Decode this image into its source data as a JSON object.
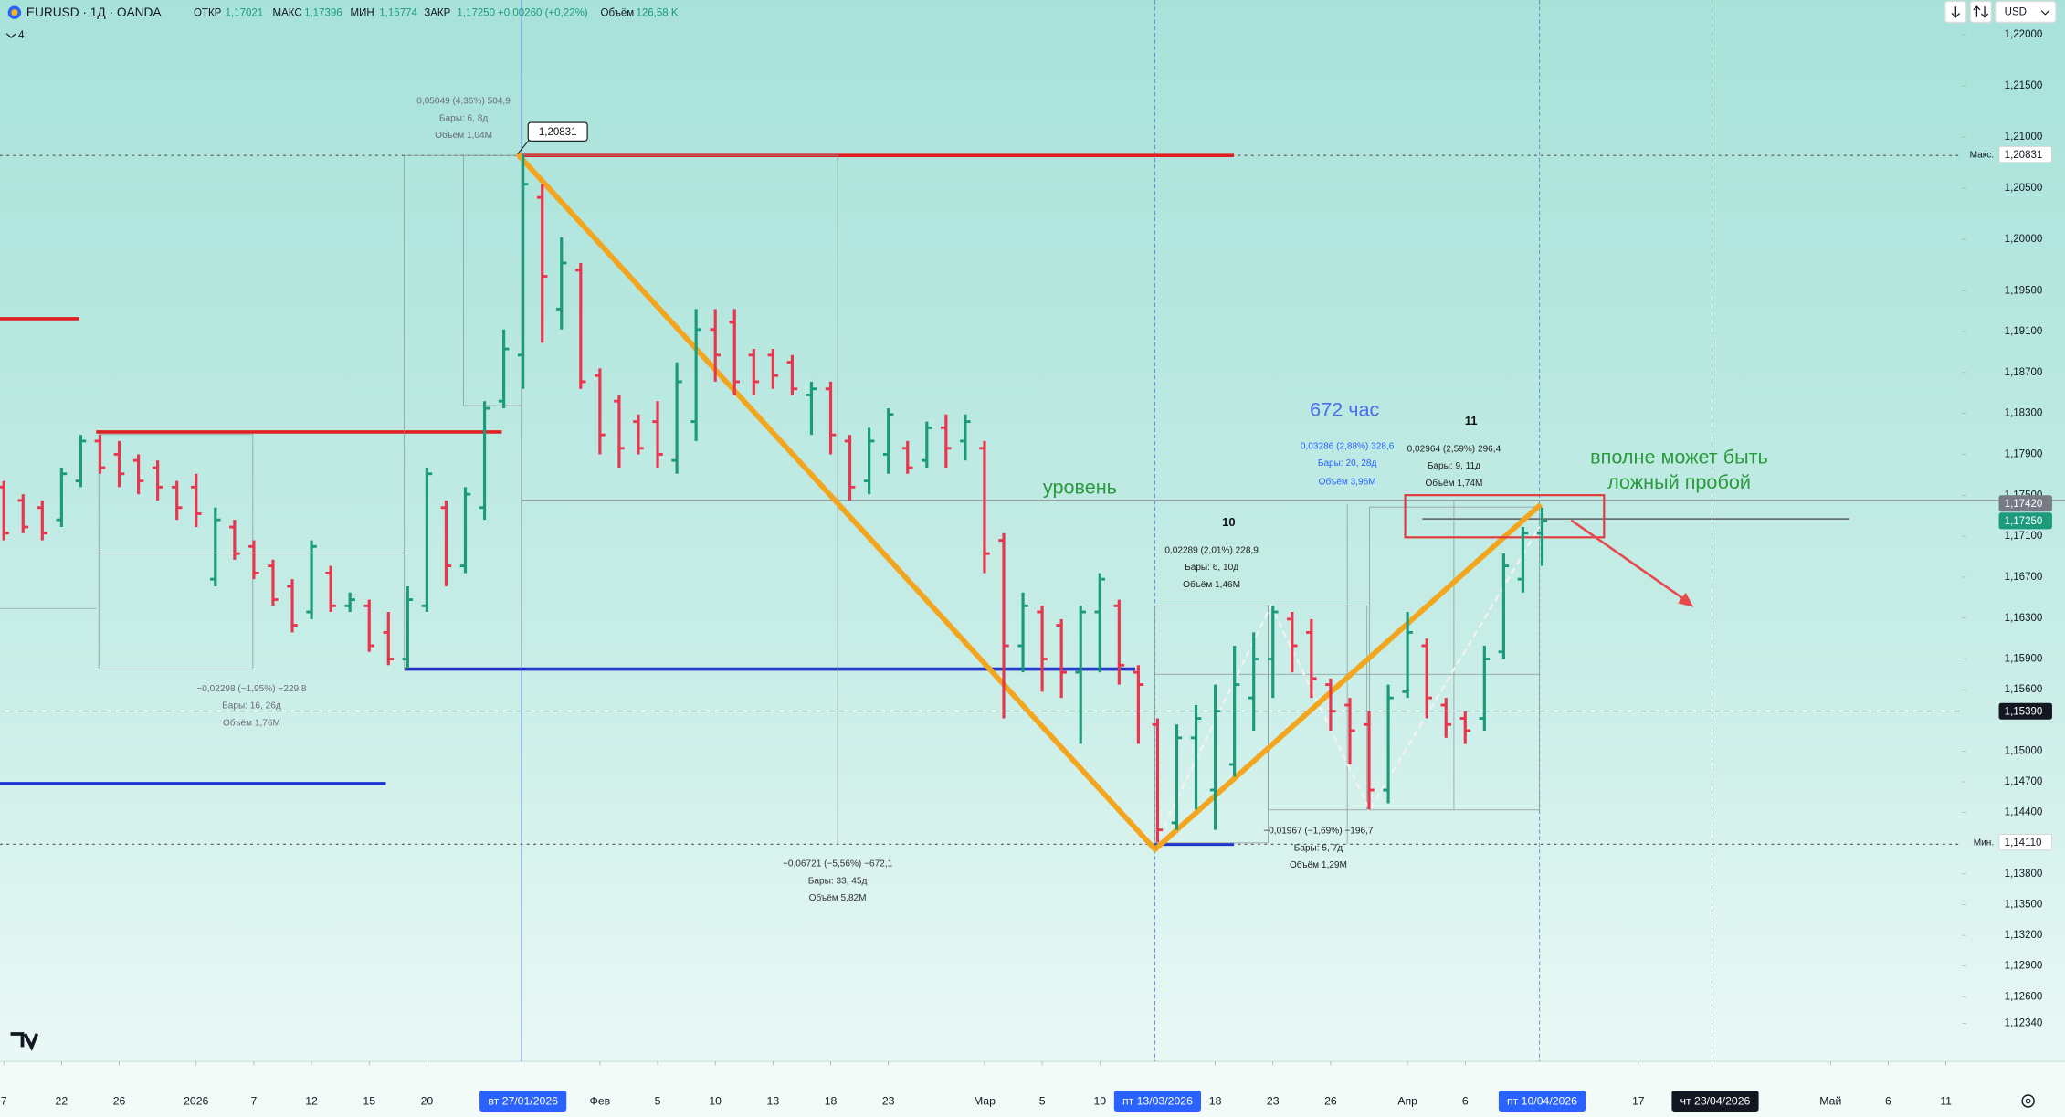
{
  "header": {
    "symbol": "EURUSD · 1Д · OANDA",
    "fields": [
      [
        "ОТКР",
        "1,17021"
      ],
      [
        "МАКС",
        "1,17396"
      ],
      [
        "МИН",
        "1,16774"
      ],
      [
        "ЗАКР",
        "1,17250"
      ]
    ],
    "change": "+0,00260 (+0,22%)",
    "volume_label": "Объём",
    "volume": "126,58 K",
    "indicators": "4",
    "currency": "USD"
  },
  "chart_data": {
    "type": "ohlc",
    "up_color": "#1b9b7c",
    "down_color": "#e8364f",
    "grid": false,
    "x": [
      0,
      1,
      2,
      3,
      4,
      5,
      6,
      7,
      8,
      9,
      10,
      11,
      12,
      13,
      14,
      15,
      16,
      17,
      18,
      19,
      20,
      21,
      22,
      23,
      24,
      25,
      26,
      27,
      28,
      29,
      30,
      31,
      32,
      33,
      34,
      35,
      36,
      37,
      38,
      39,
      40,
      41,
      42,
      43,
      44,
      45,
      46,
      47,
      48,
      49,
      50,
      51,
      52,
      53,
      54,
      55,
      56,
      57,
      58,
      59,
      60,
      61,
      62,
      63,
      64,
      65,
      66,
      67,
      68,
      69,
      70,
      71,
      72,
      73,
      74,
      75,
      76,
      77,
      78,
      79,
      80
    ],
    "ohlc": [
      [
        1.1758,
        1.1764,
        1.1706,
        1.1713
      ],
      [
        1.1745,
        1.1751,
        1.1713,
        1.1719
      ],
      [
        1.1738,
        1.1745,
        1.1706,
        1.1713
      ],
      [
        1.1726,
        1.1777,
        1.1719,
        1.1771
      ],
      [
        1.1764,
        1.1809,
        1.1758,
        1.1803
      ],
      [
        1.1803,
        1.1809,
        1.1771,
        1.1777
      ],
      [
        1.179,
        1.1803,
        1.1758,
        1.1771
      ],
      [
        1.1784,
        1.179,
        1.1751,
        1.1764
      ],
      [
        1.1777,
        1.1784,
        1.1745,
        1.1758
      ],
      [
        1.1758,
        1.1764,
        1.1726,
        1.1738
      ],
      [
        1.1758,
        1.1771,
        1.1719,
        1.1732
      ],
      [
        1.1668,
        1.1738,
        1.1661,
        1.1726
      ],
      [
        1.1719,
        1.1726,
        1.1687,
        1.1693
      ],
      [
        1.17,
        1.1706,
        1.1668,
        1.1674
      ],
      [
        1.1681,
        1.1687,
        1.1642,
        1.1648
      ],
      [
        1.1661,
        1.1668,
        1.1616,
        1.1623
      ],
      [
        1.1636,
        1.1706,
        1.1629,
        1.17
      ],
      [
        1.1674,
        1.1681,
        1.1636,
        1.1642
      ],
      [
        1.1642,
        1.1655,
        1.1636,
        1.1648
      ],
      [
        1.1642,
        1.1648,
        1.1597,
        1.1603
      ],
      [
        1.1616,
        1.1636,
        1.1584,
        1.159
      ],
      [
        1.159,
        1.1661,
        1.1581,
        1.1648
      ],
      [
        1.1642,
        1.1777,
        1.1636,
        1.1771
      ],
      [
        1.1738,
        1.1745,
        1.1661,
        1.1681
      ],
      [
        1.1681,
        1.1758,
        1.1674,
        1.1751
      ],
      [
        1.1738,
        1.1842,
        1.1726,
        1.1835
      ],
      [
        1.1842,
        1.1912,
        1.1835,
        1.1893
      ],
      [
        1.1887,
        1.20831,
        1.1854,
        1.2054
      ],
      [
        1.2041,
        1.2054,
        1.1899,
        1.1964
      ],
      [
        1.1932,
        1.2002,
        1.1912,
        1.1977
      ],
      [
        1.197,
        1.1977,
        1.1854,
        1.1861
      ],
      [
        1.1867,
        1.1874,
        1.179,
        1.1809
      ],
      [
        1.1842,
        1.1848,
        1.1777,
        1.1796
      ],
      [
        1.1822,
        1.1829,
        1.179,
        1.1796
      ],
      [
        1.1822,
        1.1842,
        1.1777,
        1.179
      ],
      [
        1.1784,
        1.188,
        1.1771,
        1.1861
      ],
      [
        1.1822,
        1.1932,
        1.1803,
        1.1912
      ],
      [
        1.1912,
        1.1932,
        1.1861,
        1.1887
      ],
      [
        1.1919,
        1.1932,
        1.1848,
        1.1861
      ],
      [
        1.1887,
        1.1893,
        1.1848,
        1.1861
      ],
      [
        1.1887,
        1.1893,
        1.1854,
        1.1867
      ],
      [
        1.188,
        1.1887,
        1.1848,
        1.1854
      ],
      [
        1.1848,
        1.1861,
        1.1809,
        1.1854
      ],
      [
        1.1854,
        1.1861,
        1.179,
        1.1809
      ],
      [
        1.1803,
        1.1809,
        1.1745,
        1.1758
      ],
      [
        1.1764,
        1.1816,
        1.1751,
        1.1803
      ],
      [
        1.179,
        1.1835,
        1.1771,
        1.1829
      ],
      [
        1.1796,
        1.1803,
        1.1771,
        1.1777
      ],
      [
        1.1784,
        1.1822,
        1.1777,
        1.1816
      ],
      [
        1.1816,
        1.1829,
        1.1777,
        1.1796
      ],
      [
        1.1803,
        1.1829,
        1.1784,
        1.1822
      ],
      [
        1.1796,
        1.1803,
        1.1674,
        1.1693
      ],
      [
        1.1706,
        1.1713,
        1.1532,
        1.1603
      ],
      [
        1.1603,
        1.1655,
        1.1577,
        1.1642
      ],
      [
        1.1636,
        1.1642,
        1.1558,
        1.159
      ],
      [
        1.1623,
        1.1629,
        1.1552,
        1.1577
      ],
      [
        1.1577,
        1.1642,
        1.1507,
        1.1636
      ],
      [
        1.1636,
        1.1674,
        1.1577,
        1.1668
      ],
      [
        1.1642,
        1.1648,
        1.1565,
        1.1584
      ],
      [
        1.1577,
        1.1584,
        1.1507,
        1.1565
      ],
      [
        1.1526,
        1.1532,
        1.1411,
        1.1423
      ],
      [
        1.143,
        1.1526,
        1.1423,
        1.1513
      ],
      [
        1.1513,
        1.1545,
        1.1443,
        1.1532
      ],
      [
        1.1462,
        1.1565,
        1.1423,
        1.1539
      ],
      [
        1.1487,
        1.1603,
        1.1475,
        1.1565
      ],
      [
        1.1552,
        1.1616,
        1.152,
        1.159
      ],
      [
        1.159,
        1.1642,
        1.1552,
        1.1636
      ],
      [
        1.1629,
        1.1636,
        1.1577,
        1.1603
      ],
      [
        1.1616,
        1.1629,
        1.1552,
        1.1571
      ],
      [
        1.1565,
        1.1571,
        1.152,
        1.1539
      ],
      [
        1.1545,
        1.1552,
        1.1487,
        1.152
      ],
      [
        1.1526,
        1.1539,
        1.1443,
        1.1462
      ],
      [
        1.1462,
        1.1565,
        1.1449,
        1.1552
      ],
      [
        1.1558,
        1.1636,
        1.1552,
        1.1616
      ],
      [
        1.1603,
        1.161,
        1.1532,
        1.1552
      ],
      [
        1.1545,
        1.1552,
        1.1513,
        1.1526
      ],
      [
        1.1532,
        1.1539,
        1.1507,
        1.152
      ],
      [
        1.1532,
        1.1603,
        1.152,
        1.159
      ],
      [
        1.1597,
        1.1693,
        1.159,
        1.1681
      ],
      [
        1.1668,
        1.1719,
        1.1655,
        1.1713
      ],
      [
        1.1713,
        1.1738,
        1.1681,
        1.1725
      ]
    ],
    "xlim": [
      -0.2,
      101.85
    ],
    "ylim": [
      1.1198,
      1.2234
    ],
    "xticks": [
      {
        "value": 0,
        "label": "7"
      },
      {
        "value": 3,
        "label": "22"
      },
      {
        "value": 6,
        "label": "26"
      },
      {
        "value": 10,
        "label": "2026"
      },
      {
        "value": 13,
        "label": "7"
      },
      {
        "value": 16,
        "label": "12"
      },
      {
        "value": 19,
        "label": "15"
      },
      {
        "value": 22,
        "label": "20"
      },
      {
        "value": 31,
        "label": "Фев"
      },
      {
        "value": 34,
        "label": "5"
      },
      {
        "value": 37,
        "label": "10"
      },
      {
        "value": 40,
        "label": "13"
      },
      {
        "value": 43,
        "label": "18"
      },
      {
        "value": 46,
        "label": "23"
      },
      {
        "value": 51,
        "label": "Мар"
      },
      {
        "value": 54,
        "label": "5"
      },
      {
        "value": 57,
        "label": "10"
      },
      {
        "value": 63,
        "label": "18"
      },
      {
        "value": 66,
        "label": "23"
      },
      {
        "value": 69,
        "label": "26"
      },
      {
        "value": 73,
        "label": "Апр"
      },
      {
        "value": 76,
        "label": "6"
      },
      {
        "value": 85,
        "label": "17"
      },
      {
        "value": 95,
        "label": "Май"
      },
      {
        "value": 98,
        "label": "6"
      },
      {
        "value": 101,
        "label": "11"
      }
    ],
    "x_markers": [
      {
        "value": 27,
        "label": "вт 27/01/2026",
        "color": "#2962ff"
      },
      {
        "value": 60,
        "label": "пт 13/03/2026",
        "color": "#2962ff"
      },
      {
        "value": 80,
        "label": "пт 10/04/2026",
        "color": "#2962ff"
      },
      {
        "value": 89,
        "label": "чт 23/04/2026",
        "color": "#131722"
      }
    ],
    "yticks": [
      {
        "value": 1.22,
        "label": "1,22000"
      },
      {
        "value": 1.215,
        "label": "1,21500"
      },
      {
        "value": 1.21,
        "label": "1,21000"
      },
      {
        "value": 1.205,
        "label": "1,20500"
      },
      {
        "value": 1.2,
        "label": "1,20000"
      },
      {
        "value": 1.195,
        "label": "1,19500"
      },
      {
        "value": 1.191,
        "label": "1,19100"
      },
      {
        "value": 1.187,
        "label": "1,18700"
      },
      {
        "value": 1.183,
        "label": "1,18300"
      },
      {
        "value": 1.179,
        "label": "1,17900"
      },
      {
        "value": 1.175,
        "label": "1,17500"
      },
      {
        "value": 1.171,
        "label": "1,17100"
      },
      {
        "value": 1.167,
        "label": "1,16700"
      },
      {
        "value": 1.163,
        "label": "1,16300"
      },
      {
        "value": 1.159,
        "label": "1,15900"
      },
      {
        "value": 1.156,
        "label": "1,15600"
      },
      {
        "value": 1.15,
        "label": "1,15000"
      },
      {
        "value": 1.147,
        "label": "1,14700"
      },
      {
        "value": 1.144,
        "label": "1,14400"
      },
      {
        "value": 1.138,
        "label": "1,13800"
      },
      {
        "value": 1.135,
        "label": "1,13500"
      },
      {
        "value": 1.132,
        "label": "1,13200"
      },
      {
        "value": 1.129,
        "label": "1,12900"
      },
      {
        "value": 1.126,
        "label": "1,12600"
      },
      {
        "value": 1.1234,
        "label": "1,12340"
      }
    ],
    "y_markers": [
      {
        "value": 1.20831,
        "label": "1,20831",
        "note": "Макс.",
        "color": "#ffffff",
        "text_color": "#131722"
      },
      {
        "value": 1.1742,
        "label": "1,17420",
        "color": "#787b86",
        "text_color": "#ffffff"
      },
      {
        "value": 1.1725,
        "label": "1,17250",
        "color": "#1b9b7c",
        "text_color": "#ffffff"
      },
      {
        "value": 1.1539,
        "label": "1,15390",
        "color": "#131722",
        "text_color": "#ffffff"
      },
      {
        "value": 1.1411,
        "label": "1,14110",
        "note": "Мин.",
        "color": "#ffffff",
        "text_color": "#131722"
      }
    ],
    "annotations": {
      "measures": [
        "0,05049 (4,36%) 504,9",
        "Бары: 6, 8д",
        "Объём 1,04M",
        "−0,02298 (−1,95%) −229,8",
        "Бары: 16, 26д",
        "Объём 1,76M",
        "−0,06721 (−5,56%) −672,1",
        "Бары: 33, 45д",
        "Объём 5,82M",
        "0,03286 (2,88%) 328,6",
        "Бары: 20, 28д",
        "Объём 3,96M",
        "0,02964 (2,59%) 296,4",
        "Бары: 9, 11д",
        "Объём 1,74M",
        "0,02289 (2,01%) 228,9",
        "Бары: 6, 10д",
        "Объём 1,46M",
        "−0,01967 (−1,69%) −196,7",
        "Бары: 5, 7д",
        "Объём 1,29M"
      ],
      "level": "уровень",
      "hours": "672 час",
      "wave_11": "11",
      "wave_10": "10",
      "comment": [
        "вполне может быть",
        "ложный пробой"
      ],
      "callout": "1,20831"
    }
  }
}
